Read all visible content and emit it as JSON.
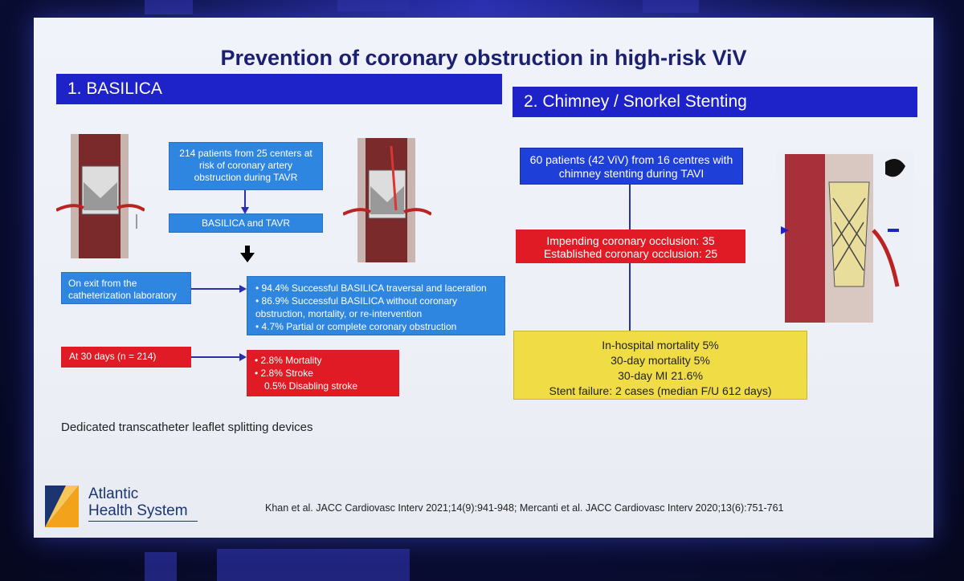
{
  "slide": {
    "title": "Prevention of coronary obstruction in high-risk ViV",
    "section1": {
      "header": "1.  BASILICA",
      "cohort": "214 patients from 25 centers at risk of coronary artery obstruction during TAVR",
      "procedure": "BASILICA and TAVR",
      "exit_label": "On exit from the catheterization laboratory",
      "exit_results": [
        "• 94.4% Successful BASILICA traversal and laceration",
        "• 86.9% Successful BASILICA without coronary obstruction, mortality, or re-intervention",
        "• 4.7% Partial or complete coronary obstruction"
      ],
      "day30_label": "At 30 days (n = 214)",
      "day30_results": [
        "• 2.8% Mortality",
        "• 2.8% Stroke",
        "0.5% Disabling stroke"
      ]
    },
    "section2": {
      "header": "2. Chimney / Snorkel Stenting",
      "cohort": "60 patients (42 ViV) from 16 centres with chimney stenting during TAVI",
      "occlusion": [
        "Impending coronary occlusion: 35",
        "Established coronary occlusion: 25"
      ],
      "outcomes": [
        "In-hospital mortality 5%",
        "30-day mortality 5%",
        "30-day MI 21.6%",
        "Stent failure: 2 cases (median F/U 612 days)"
      ]
    },
    "footnote": "Dedicated transcatheter leaflet splitting devices",
    "reference": "Khan et al. JACC Cardiovasc Interv 2021;14(9):941-948; Mercanti et al. JACC Cardiovasc Interv 2020;13(6):751-761",
    "logo": {
      "line1": "Atlantic",
      "line2": "Health System"
    }
  },
  "colors": {
    "header_blue": "#1e22c9",
    "box_blue": "#2f86e0",
    "red": "#e11b25",
    "yellow": "#f0dd45",
    "title_navy": "#1b2070"
  },
  "icons": [
    "valve-illustration",
    "down-arrow-icon",
    "logo-mark"
  ]
}
